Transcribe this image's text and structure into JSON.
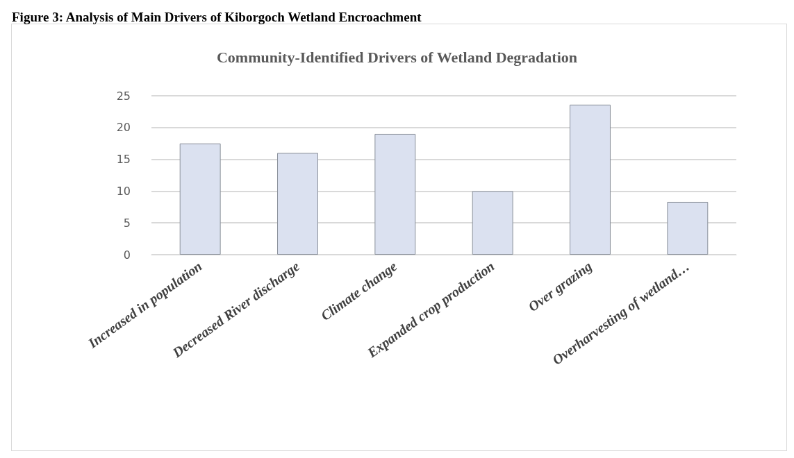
{
  "chart_data": {
    "type": "bar",
    "title": "Community-Identified Drivers of Wetland Degradation",
    "annotations": [
      "Figure 3: Analysis of Main Drivers of Kiborgoch Wetland Encroachment"
    ],
    "categories": [
      "Increased in population",
      "Decreased River discharge",
      "Climate change",
      "Expanded crop production",
      "Over grazing",
      "Overharvesting of wetland…"
    ],
    "values": [
      17.5,
      16,
      19,
      10,
      23.6,
      8.3
    ],
    "color": "#dbe1f0",
    "ylim": [
      0,
      25
    ],
    "yticks": [
      0,
      5,
      10,
      15,
      20,
      25
    ],
    "grid": "y"
  }
}
